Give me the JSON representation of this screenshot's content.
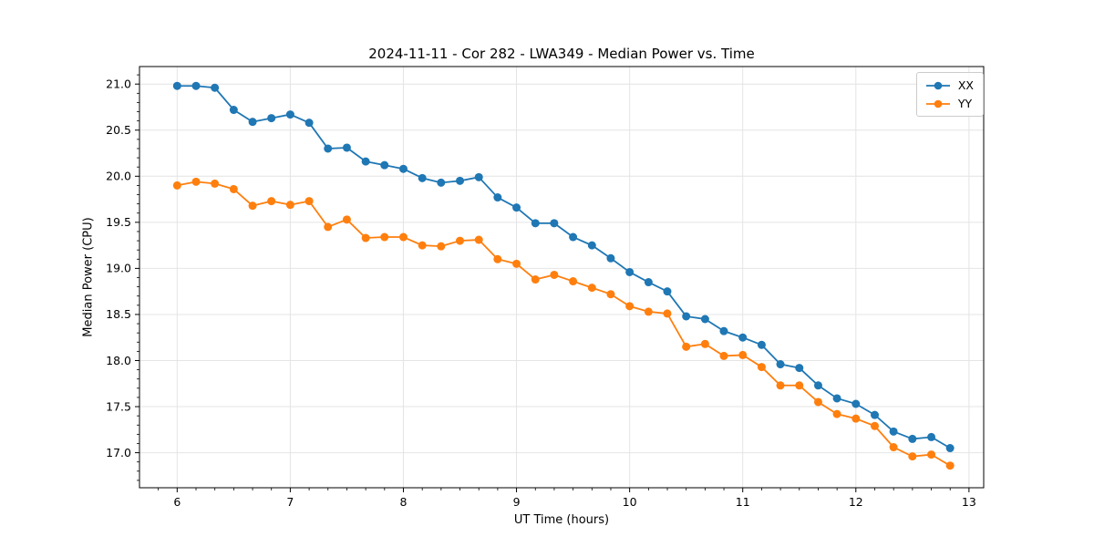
{
  "chart_data": {
    "type": "line",
    "title": "2024-11-11 - Cor 282 - LWA349 - Median Power vs. Time",
    "xlabel": "UT Time (hours)",
    "ylabel": "Median Power (CPU)",
    "xlim": [
      5.667,
      13.13
    ],
    "ylim": [
      16.62,
      21.19
    ],
    "x_ticks": [
      6,
      7,
      8,
      9,
      10,
      11,
      12,
      13
    ],
    "x_tick_labels": [
      "6",
      "7",
      "8",
      "9",
      "10",
      "11",
      "12",
      "13"
    ],
    "y_ticks": [
      17.0,
      17.5,
      18.0,
      18.5,
      19.0,
      19.5,
      20.0,
      20.5,
      21.0
    ],
    "y_tick_labels": [
      "17.0",
      "17.5",
      "18.0",
      "18.5",
      "19.0",
      "19.5",
      "20.0",
      "20.5",
      "21.0"
    ],
    "x_minor_step": 0.16667,
    "y_minor_step": 0.1,
    "grid": true,
    "grid_color": "#e4e4e4",
    "legend_position": "upper right",
    "x": [
      6.0,
      6.167,
      6.333,
      6.5,
      6.667,
      6.833,
      7.0,
      7.167,
      7.333,
      7.5,
      7.667,
      7.833,
      8.0,
      8.167,
      8.333,
      8.5,
      8.667,
      8.833,
      9.0,
      9.167,
      9.333,
      9.5,
      9.667,
      9.833,
      10.0,
      10.167,
      10.333,
      10.5,
      10.667,
      10.833,
      11.0,
      11.167,
      11.333,
      11.5,
      11.667,
      11.833,
      12.0,
      12.167,
      12.333,
      12.5,
      12.667,
      12.833
    ],
    "series": [
      {
        "name": "XX",
        "color": "#1f77b4",
        "values": [
          20.98,
          20.98,
          20.96,
          20.72,
          20.59,
          20.63,
          20.67,
          20.58,
          20.3,
          20.31,
          20.16,
          20.12,
          20.08,
          19.98,
          19.93,
          19.95,
          19.99,
          19.77,
          19.66,
          19.49,
          19.49,
          19.34,
          19.25,
          19.11,
          18.96,
          18.85,
          18.75,
          18.48,
          18.45,
          18.32,
          18.25,
          18.17,
          17.96,
          17.92,
          17.73,
          17.59,
          17.53,
          17.41,
          17.23,
          17.15,
          17.17,
          17.05
        ]
      },
      {
        "name": "YY",
        "color": "#ff7f0e",
        "values": [
          19.9,
          19.94,
          19.92,
          19.86,
          19.68,
          19.73,
          19.69,
          19.73,
          19.45,
          19.53,
          19.33,
          19.34,
          19.34,
          19.25,
          19.24,
          19.3,
          19.31,
          19.1,
          19.05,
          18.88,
          18.93,
          18.86,
          18.79,
          18.72,
          18.59,
          18.53,
          18.51,
          18.15,
          18.18,
          18.05,
          18.06,
          17.93,
          17.73,
          17.73,
          17.55,
          17.42,
          17.37,
          17.29,
          17.06,
          16.96,
          16.98,
          16.86
        ]
      }
    ]
  }
}
